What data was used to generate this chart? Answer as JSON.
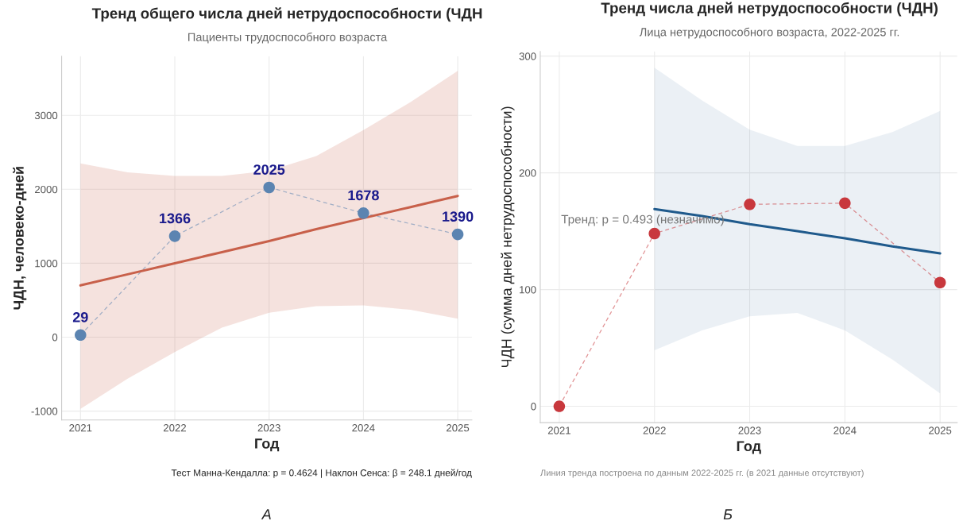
{
  "chart_data": [
    {
      "type": "line",
      "title": "Тренд общего числа дней нетрудоспособности (ЧДН",
      "subtitle": "Пациенты трудоспособного возраста",
      "xlabel": "Год",
      "ylabel": "ЧДН, человеко-дней",
      "x": [
        2021,
        2022,
        2023,
        2024,
        2025
      ],
      "series": [
        {
          "color": "#5b84b1",
          "marker": "circle",
          "line_style": "dashed",
          "values": [
            29,
            1366,
            2025,
            1678,
            1390
          ],
          "value_labels": [
            "29",
            "1366",
            "2025",
            "1678",
            "1390"
          ]
        },
        {
          "color": "#c8604a",
          "x": [
            2021,
            2021.5,
            2022,
            2022.5,
            2023,
            2023.5,
            2024,
            2024.5,
            2025
          ],
          "values": [
            700,
            850,
            1000,
            1150,
            1300,
            1460,
            1610,
            1760,
            1910
          ],
          "lower": [
            -970,
            -560,
            -200,
            130,
            330,
            420,
            430,
            370,
            250
          ],
          "upper": [
            2350,
            2230,
            2180,
            2180,
            2250,
            2450,
            2800,
            3180,
            3600
          ]
        }
      ],
      "xlim": [
        2020.8,
        2025.15
      ],
      "xticks": [
        2021,
        2022,
        2023,
        2024,
        2025
      ],
      "ylim": [
        -1120,
        3800
      ],
      "yticks": [
        {
          "value": -1000,
          "label": "-1000"
        },
        0,
        1000,
        2000,
        3000
      ],
      "grid": true,
      "annotations": [
        "Тест Манна-Кендалла: p = 0.4624 | Наклон Сенса: β = 248.1 дней/год",
        "А"
      ]
    },
    {
      "type": "line",
      "title": "Тренд числа дней нетрудоспособности (ЧДН)",
      "subtitle": "Лица нетрудоспособного возраста, 2022-2025 гг.",
      "xlabel": "Год",
      "ylabel": "ЧДН (сумма дней нетрудоспособности)",
      "x": [
        2021,
        2022,
        2023,
        2024,
        2025
      ],
      "series": [
        {
          "color": "#c8383d",
          "marker": "circle",
          "line_style": "dashed",
          "values": [
            0,
            148,
            173,
            174,
            106
          ]
        },
        {
          "color": "#1f5a8c",
          "x": [
            2022,
            2022.5,
            2023,
            2023.5,
            2024,
            2024.5,
            2025
          ],
          "values": [
            169,
            163,
            156,
            150,
            144,
            137,
            131
          ],
          "lower": [
            48,
            65,
            77,
            80,
            65,
            40,
            11
          ],
          "upper": [
            290,
            262,
            237,
            223,
            223,
            235,
            253
          ]
        }
      ],
      "xlim": [
        2020.8,
        2025.18
      ],
      "xticks": [
        2021,
        2022,
        2023,
        2024,
        2025
      ],
      "ylim": [
        -14,
        304
      ],
      "yticks": [
        0,
        100,
        200,
        300
      ],
      "grid": true,
      "annotations": [
        "Тренд: p = 0.493 (незначимо)",
        "Линия тренда построена по данным 2022-2025 гг. (в 2021 данные отсутствуют)",
        "Б"
      ]
    }
  ]
}
